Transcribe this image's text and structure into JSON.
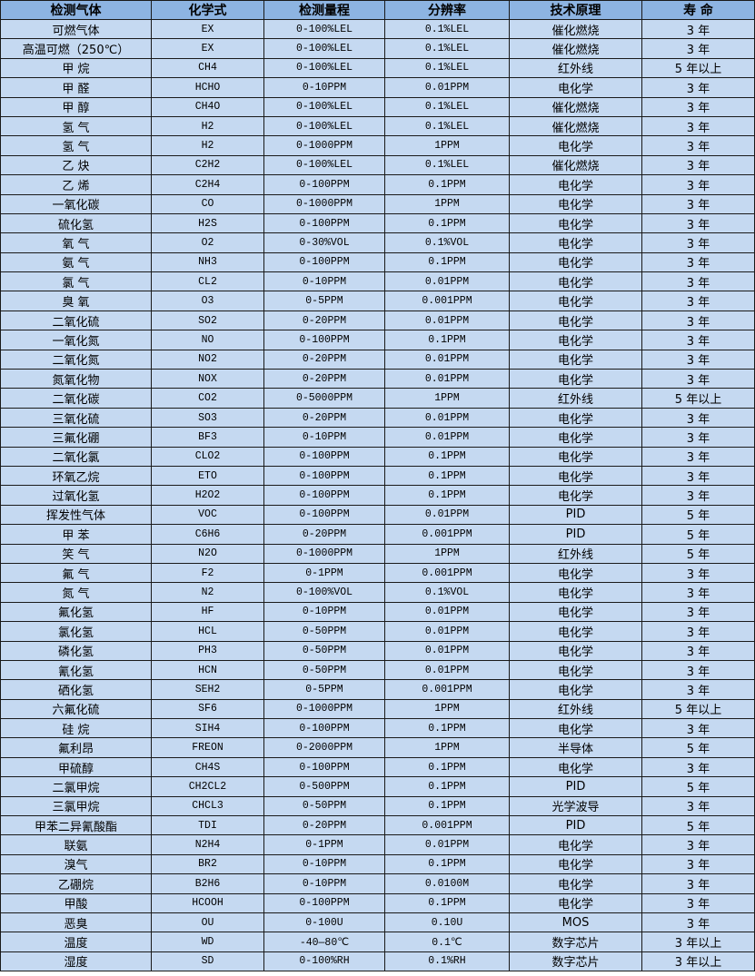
{
  "table": {
    "headers": [
      "检测气体",
      "化学式",
      "检测量程",
      "分辨率",
      "技术原理",
      "寿 命"
    ],
    "rows": [
      [
        "可燃气体",
        "EX",
        "0-100%LEL",
        "0.1%LEL",
        "催化燃烧",
        "3 年"
      ],
      [
        "高温可燃（250℃）",
        "EX",
        "0-100%LEL",
        "0.1%LEL",
        "催化燃烧",
        "3 年"
      ],
      [
        "甲 烷",
        "CH4",
        "0-100%LEL",
        "0.1%LEL",
        "红外线",
        "5 年以上"
      ],
      [
        "甲 醛",
        "HCHO",
        "0-10PPM",
        "0.01PPM",
        "电化学",
        "3 年"
      ],
      [
        "甲 醇",
        "CH4O",
        "0-100%LEL",
        "0.1%LEL",
        "催化燃烧",
        "3 年"
      ],
      [
        "氢 气",
        "H2",
        "0-100%LEL",
        "0.1%LEL",
        "催化燃烧",
        "3 年"
      ],
      [
        "氢 气",
        "H2",
        "0-1000PPM",
        "1PPM",
        "电化学",
        "3 年"
      ],
      [
        "乙 炔",
        "C2H2",
        "0-100%LEL",
        "0.1%LEL",
        "催化燃烧",
        "3 年"
      ],
      [
        "乙 烯",
        "C2H4",
        "0-100PPM",
        "0.1PPM",
        "电化学",
        "3 年"
      ],
      [
        "一氧化碳",
        "CO",
        "0-1000PPM",
        "1PPM",
        "电化学",
        "3 年"
      ],
      [
        "硫化氢",
        "H2S",
        "0-100PPM",
        "0.1PPM",
        "电化学",
        "3 年"
      ],
      [
        "氧 气",
        "O2",
        "0-30%VOL",
        "0.1%VOL",
        "电化学",
        "3 年"
      ],
      [
        "氨 气",
        "NH3",
        "0-100PPM",
        "0.1PPM",
        "电化学",
        "3 年"
      ],
      [
        "氯 气",
        "CL2",
        "0-10PPM",
        "0.01PPM",
        "电化学",
        "3 年"
      ],
      [
        "臭 氧",
        "O3",
        "0-5PPM",
        "0.001PPM",
        "电化学",
        "3 年"
      ],
      [
        "二氧化硫",
        "SO2",
        "0-20PPM",
        "0.01PPM",
        "电化学",
        "3 年"
      ],
      [
        "一氧化氮",
        "NO",
        "0-100PPM",
        "0.1PPM",
        "电化学",
        "3 年"
      ],
      [
        "二氧化氮",
        "NO2",
        "0-20PPM",
        "0.01PPM",
        "电化学",
        "3 年"
      ],
      [
        "氮氧化物",
        "NOX",
        "0-20PPM",
        "0.01PPM",
        "电化学",
        "3 年"
      ],
      [
        "二氧化碳",
        "CO2",
        "0-5000PPM",
        "1PPM",
        "红外线",
        "5 年以上"
      ],
      [
        "三氧化硫",
        "SO3",
        "0-20PPM",
        "0.01PPM",
        "电化学",
        "3 年"
      ],
      [
        "三氟化硼",
        "BF3",
        "0-10PPM",
        "0.01PPM",
        "电化学",
        "3 年"
      ],
      [
        "二氧化氯",
        "CLO2",
        "0-100PPM",
        "0.1PPM",
        "电化学",
        "3 年"
      ],
      [
        "环氧乙烷",
        "ETO",
        "0-100PPM",
        "0.1PPM",
        "电化学",
        "3 年"
      ],
      [
        "过氧化氢",
        "H2O2",
        "0-100PPM",
        "0.1PPM",
        "电化学",
        "3 年"
      ],
      [
        "挥发性气体",
        "VOC",
        "0-100PPM",
        "0.01PPM",
        "PID",
        "5 年"
      ],
      [
        "甲 苯",
        "C6H6",
        "0-20PPM",
        "0.001PPM",
        "PID",
        "5 年"
      ],
      [
        "笑 气",
        "N2O",
        "0-1000PPM",
        "1PPM",
        "红外线",
        "5 年"
      ],
      [
        "氟 气",
        "F2",
        "0-1PPM",
        "0.001PPM",
        "电化学",
        "3 年"
      ],
      [
        "氮 气",
        "N2",
        "0-100%VOL",
        "0.1%VOL",
        "电化学",
        "3 年"
      ],
      [
        "氟化氢",
        "HF",
        "0-10PPM",
        "0.01PPM",
        "电化学",
        "3 年"
      ],
      [
        "氯化氢",
        "HCL",
        "0-50PPM",
        "0.01PPM",
        "电化学",
        "3 年"
      ],
      [
        "磷化氢",
        "PH3",
        "0-50PPM",
        "0.01PPM",
        "电化学",
        "3 年"
      ],
      [
        "氰化氢",
        "HCN",
        "0-50PPM",
        "0.01PPM",
        "电化学",
        "3 年"
      ],
      [
        "硒化氢",
        "SEH2",
        "0-5PPM",
        "0.001PPM",
        "电化学",
        "3 年"
      ],
      [
        "六氟化硫",
        "SF6",
        "0-1000PPM",
        "1PPM",
        "红外线",
        "5 年以上"
      ],
      [
        "硅 烷",
        "SIH4",
        "0-100PPM",
        "0.1PPM",
        "电化学",
        "3 年"
      ],
      [
        "氟利昂",
        "FREON",
        "0-2000PPM",
        "1PPM",
        "半导体",
        "5 年"
      ],
      [
        "甲硫醇",
        "CH4S",
        "0-100PPM",
        "0.1PPM",
        "电化学",
        "3 年"
      ],
      [
        "二氯甲烷",
        "CH2CL2",
        "0-500PPM",
        "0.1PPM",
        "PID",
        "5 年"
      ],
      [
        "三氯甲烷",
        "CHCL3",
        "0-50PPM",
        "0.1PPM",
        "光学波导",
        "3 年"
      ],
      [
        "甲苯二异氰酸酯",
        "TDI",
        "0-20PPM",
        "0.001PPM",
        "PID",
        "5 年"
      ],
      [
        "联氨",
        "N2H4",
        "0-1PPM",
        "0.01PPM",
        "电化学",
        "3 年"
      ],
      [
        "溴气",
        "BR2",
        "0-10PPM",
        "0.1PPM",
        "电化学",
        "3 年"
      ],
      [
        "乙硼烷",
        "B2H6",
        "0-10PPM",
        "0.0100M",
        "电化学",
        "3 年"
      ],
      [
        "甲酸",
        "HCOOH",
        "0-100PPM",
        "0.1PPM",
        "电化学",
        "3 年"
      ],
      [
        "恶臭",
        "OU",
        "0-100U",
        "0.10U",
        "MOS",
        "3 年"
      ],
      [
        "温度",
        "WD",
        "-40—80℃",
        "0.1℃",
        "数字芯片",
        "3 年以上"
      ],
      [
        "湿度",
        "SD",
        "0-100%RH",
        "0.1%RH",
        "数字芯片",
        "3 年以上"
      ]
    ]
  },
  "colors": {
    "header_bg": "#8DB4E2",
    "row_bg": "#C5D9F1",
    "border": "#1a1a1a"
  }
}
